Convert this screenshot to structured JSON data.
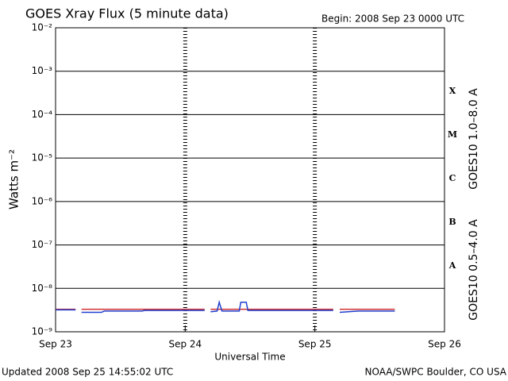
{
  "chart_data": {
    "type": "line",
    "title": "GOES Xray Flux (5 minute data)",
    "subtitle": "Begin:  2008 Sep 23 0000 UTC",
    "y_label": "Watts m⁻²",
    "x_label": "Universal Time",
    "footer_left": "Updated 2008 Sep 25 14:55:02 UTC",
    "footer_right": "NOAA/SWPC Boulder, CO USA",
    "flare_classes": [
      "X",
      "M",
      "C",
      "B",
      "A"
    ],
    "log_y": true,
    "grid": true,
    "xlim": [
      0,
      72
    ],
    "xticks": [
      {
        "value": 0,
        "label": "Sep 23"
      },
      {
        "value": 24,
        "label": "Sep 24"
      },
      {
        "value": 48,
        "label": "Sep 25"
      },
      {
        "value": 72,
        "label": "Sep 26"
      }
    ],
    "ylim": [
      1e-09,
      0.01
    ],
    "yticks": [
      {
        "value": 1e-09,
        "label": "10⁻⁹"
      },
      {
        "value": 1e-08,
        "label": "10⁻⁸"
      },
      {
        "value": 1e-07,
        "label": "10⁻⁷"
      },
      {
        "value": 1e-06,
        "label": "10⁻⁶"
      },
      {
        "value": 1e-05,
        "label": "10⁻⁵"
      },
      {
        "value": 0.0001,
        "label": "10⁻⁴"
      },
      {
        "value": 0.001,
        "label": "10⁻³"
      },
      {
        "value": 0.01,
        "label": "10⁻²"
      }
    ],
    "series": [
      {
        "name": "GOES10 1.0–8.0 A",
        "color": "#d03030",
        "x": [
          0,
          3.7,
          null,
          4.8,
          27.6,
          null,
          28.7,
          51.4,
          null,
          52.6,
          62.8
        ],
        "values": [
          3.3e-09,
          3.3e-09,
          null,
          3.3e-09,
          3.3e-09,
          null,
          3.3e-09,
          3.3e-09,
          null,
          3.3e-09,
          3.3e-09
        ]
      },
      {
        "name": "GOES10 0.5–4.0 A",
        "color": "#2040d0",
        "x": [
          0,
          3.7,
          null,
          4.8,
          8.5,
          9,
          16,
          16.5,
          27.6,
          null,
          28.7,
          29.9,
          30.3,
          30.8,
          34.0,
          34.3,
          35.3,
          35.6,
          51.4,
          null,
          52.6,
          56,
          62.8
        ],
        "values": [
          3.2e-09,
          3.2e-09,
          null,
          2.8e-09,
          2.8e-09,
          3e-09,
          3e-09,
          3.1e-09,
          3.1e-09,
          null,
          2.9e-09,
          3e-09,
          4.8e-09,
          3e-09,
          3e-09,
          4.8e-09,
          4.8e-09,
          3.1e-09,
          3.1e-09,
          null,
          2.8e-09,
          3e-09,
          3e-09
        ]
      }
    ]
  }
}
